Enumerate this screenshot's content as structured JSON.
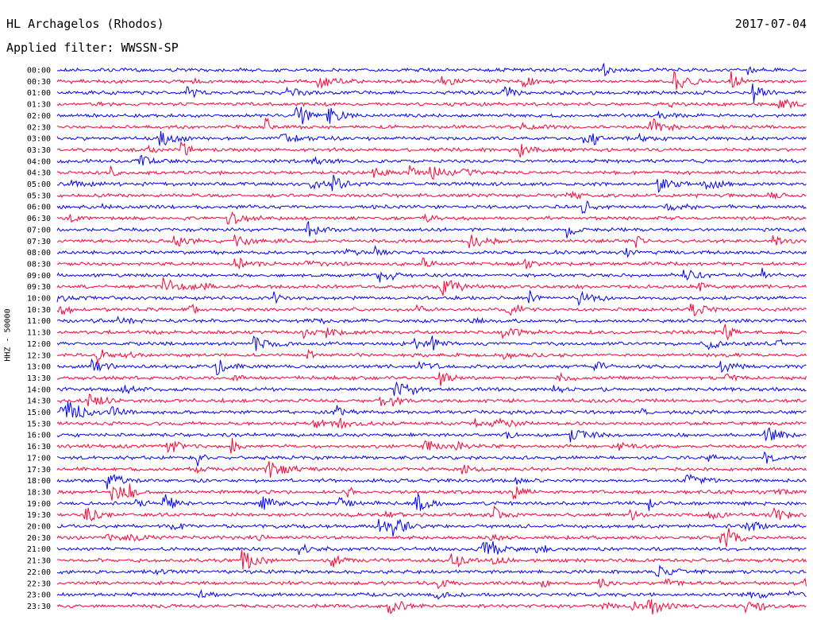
{
  "header": {
    "station": "HL Archagelos (Rhodos)",
    "date": "2017-07-04",
    "filter": "Applied filter: WWSSN-SP"
  },
  "channel_label": "HHZ - 50000",
  "colors": {
    "trace_a": "#0000ff",
    "trace_b": "#ff0033",
    "text": "#000000",
    "background": "#ffffff"
  },
  "time_labels": [
    "00:00",
    "00:30",
    "01:00",
    "01:30",
    "02:00",
    "02:30",
    "03:00",
    "03:30",
    "04:00",
    "04:30",
    "05:00",
    "05:30",
    "06:00",
    "06:30",
    "07:00",
    "07:30",
    "08:00",
    "08:30",
    "09:00",
    "09:30",
    "10:00",
    "10:30",
    "11:00",
    "11:30",
    "12:00",
    "12:30",
    "13:00",
    "13:30",
    "14:00",
    "14:30",
    "15:00",
    "15:30",
    "16:00",
    "16:30",
    "17:00",
    "17:30",
    "18:00",
    "18:30",
    "19:00",
    "19:30",
    "20:00",
    "20:30",
    "21:00",
    "21:30",
    "22:00",
    "22:30",
    "23:00",
    "23:30"
  ]
}
